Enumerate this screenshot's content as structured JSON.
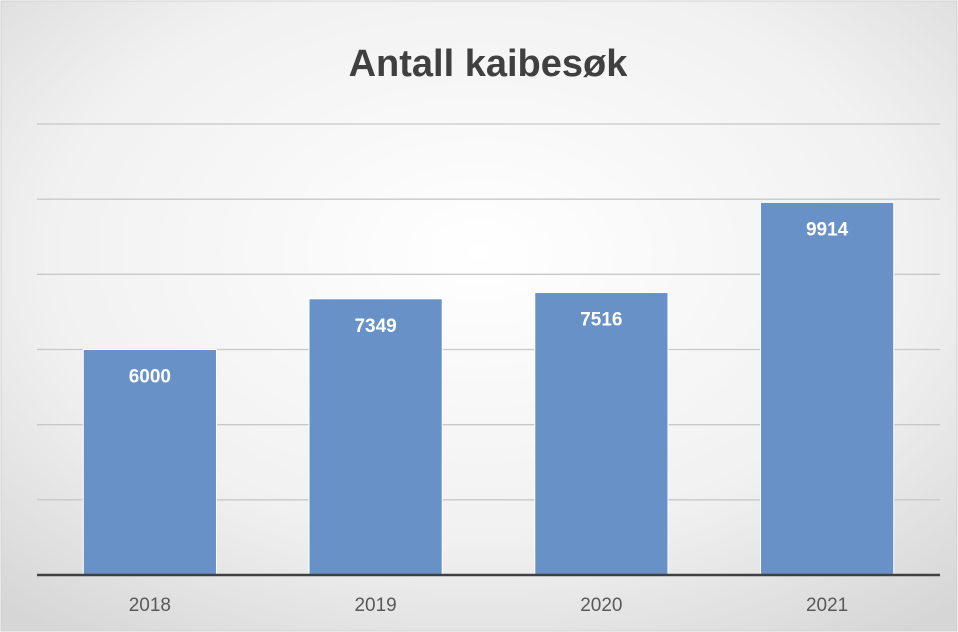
{
  "chart_data": {
    "type": "bar",
    "title": "Antall kaibesøk",
    "categories": [
      "2018",
      "2019",
      "2020",
      "2021"
    ],
    "values": [
      6000,
      7349,
      7516,
      9914
    ],
    "color": "#6891c7",
    "ylim": [
      0,
      12000
    ],
    "yticks": [
      0,
      2000,
      4000,
      6000,
      8000,
      10000,
      12000
    ],
    "grid": true,
    "data_labels": true
  }
}
